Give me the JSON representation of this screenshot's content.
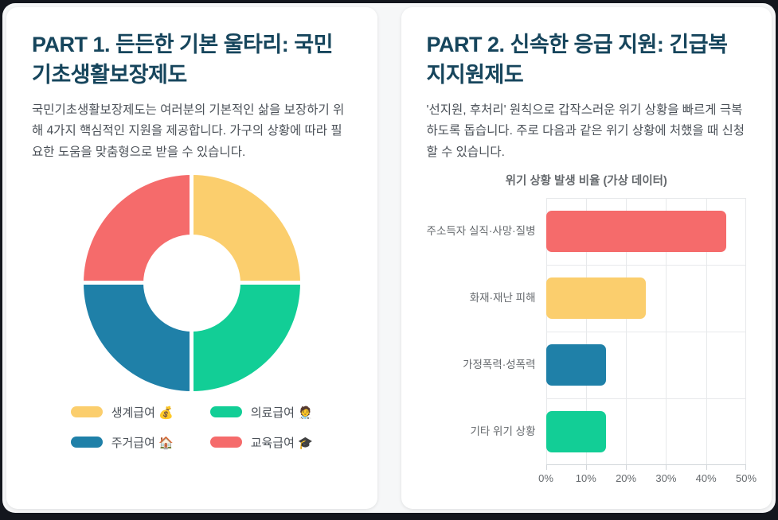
{
  "part1": {
    "title": "PART 1. 든든한 기본 울타리: 국민기초생활보장제도",
    "description": "국민기초생활보장제도는 여러분의 기본적인 삶을 보장하기 위해 4가지 핵심적인 지원을 제공합니다. 가구의 상황에 따라 필요한 도움을 맞춤형으로 받을 수 있습니다."
  },
  "part2": {
    "title": "PART 2. 신속한 응급 지원: 긴급복지지원제도",
    "description": "'선지원, 후처리' 원칙으로 갑작스러운 위기 상황을 빠르게 극복하도록 돕습니다. 주로 다음과 같은 위기 상황에 처했을 때 신청할 수 있습니다."
  },
  "chart_data": [
    {
      "type": "pie",
      "donut": true,
      "title": "",
      "labels": [
        "생계급여 💰",
        "의료급여 🧑‍⚕️",
        "주거급여 🏠",
        "교육급여 🎓"
      ],
      "values": [
        25,
        25,
        25,
        25
      ],
      "colors": [
        "#fbce6d",
        "#12ce96",
        "#1f80a8",
        "#f56b6b"
      ],
      "legend_position": "bottom",
      "start_angle_deg": 0,
      "segment_gap_color": "#ffffff"
    },
    {
      "type": "bar",
      "orientation": "horizontal",
      "title": "위기 상황 발생 비율 (가상 데이터)",
      "categories": [
        "주소득자 실직·사망·질병",
        "화재·재난 피해",
        "가정폭력·성폭력",
        "기타 위기 상황"
      ],
      "values": [
        45,
        25,
        15,
        15
      ],
      "unit": "%",
      "colors": [
        "#f56b6b",
        "#fbce6d",
        "#1f80a8",
        "#12ce96"
      ],
      "xlim": [
        0,
        50
      ],
      "x_ticks": [
        "0%",
        "10%",
        "20%",
        "30%",
        "40%",
        "50%"
      ],
      "grid": true,
      "legend": false
    }
  ],
  "colors": {
    "background_dark": "#13161d",
    "page_bg": "#f6f7f8",
    "card_bg": "#ffffff",
    "heading": "#16455c",
    "body_text": "#4b5158",
    "chart_text": "#666a6e",
    "grid_line": "#e7e9eb",
    "axis_line": "#d2d6da"
  }
}
